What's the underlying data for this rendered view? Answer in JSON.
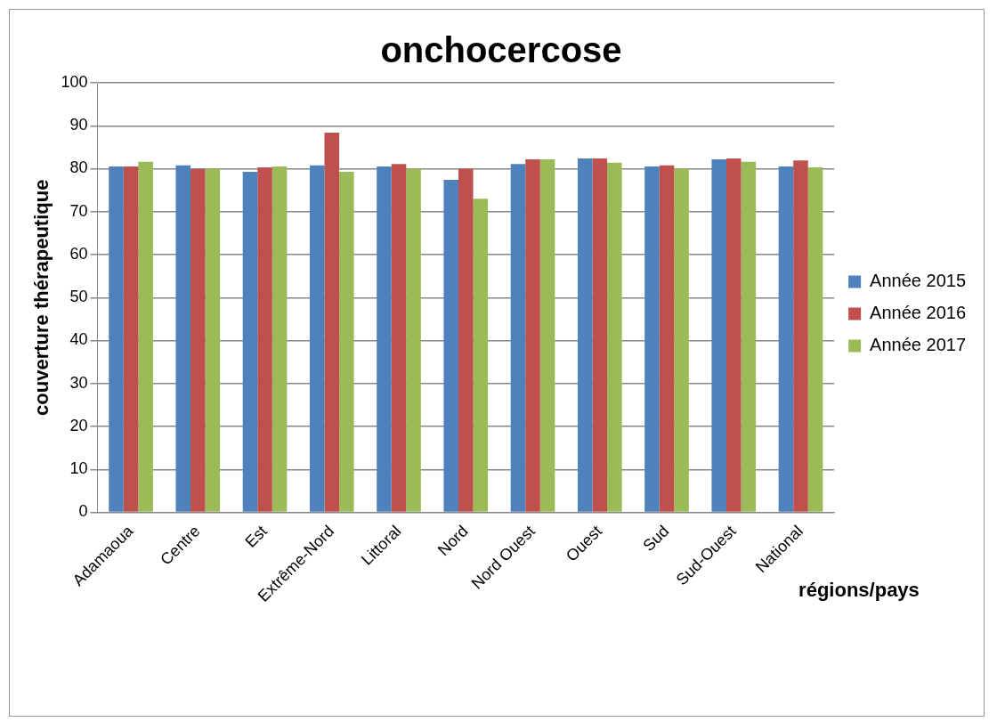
{
  "chart_data": {
    "type": "bar",
    "title": "onchocercose",
    "xlabel": "régions/pays",
    "ylabel": "couverture thérapeutique",
    "categories": [
      "Adamaoua",
      "Centre",
      "Est",
      "Extrême-Nord",
      "Littoral",
      "Nord",
      "Nord Ouest",
      "Ouest",
      "Sud",
      "Sud-Ouest",
      "National"
    ],
    "series": [
      {
        "name": "Année 2015",
        "color": "#4f81bd",
        "values": [
          80.5,
          80.8,
          79.3,
          80.8,
          80.5,
          77.4,
          81.1,
          82.4,
          80.5,
          82.2,
          80.5
        ]
      },
      {
        "name": "Année 2016",
        "color": "#c0504d",
        "values": [
          80.5,
          79.9,
          80.3,
          88.4,
          81.1,
          80.0,
          82.2,
          82.4,
          80.8,
          82.4,
          81.9
        ]
      },
      {
        "name": "Année 2017",
        "color": "#9bbb59",
        "values": [
          81.6,
          80.0,
          80.5,
          79.3,
          80.0,
          73.0,
          82.2,
          81.4,
          80.0,
          81.6,
          80.3
        ]
      }
    ],
    "ylim": [
      0,
      100
    ],
    "yticks": [
      0,
      10,
      20,
      30,
      40,
      50,
      60,
      70,
      80,
      90,
      100
    ],
    "grid": "y",
    "legend": "right"
  }
}
